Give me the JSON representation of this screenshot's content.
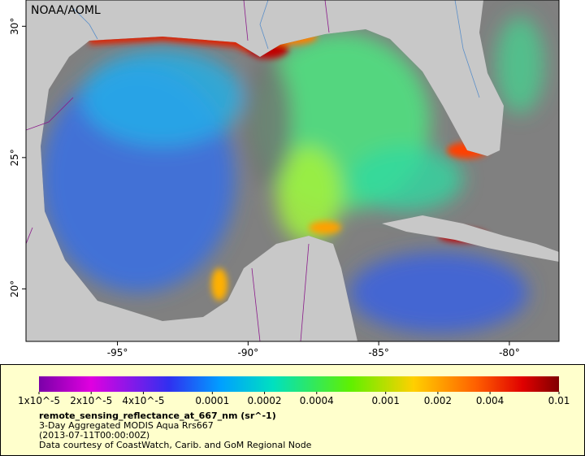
{
  "map": {
    "credit": "NOAA/AOML",
    "lonlim": [
      -98.5,
      -78.1
    ],
    "latlim": [
      18,
      31
    ],
    "lonticks": [
      {
        "value": -95,
        "label": "-95°"
      },
      {
        "value": -90,
        "label": "-90°"
      },
      {
        "value": -85,
        "label": "-85°"
      },
      {
        "value": -80,
        "label": "-80°"
      }
    ],
    "latticks": [
      {
        "value": 30,
        "label": "30°"
      },
      {
        "value": 25,
        "label": "25°"
      },
      {
        "value": 20,
        "label": "20°"
      }
    ]
  },
  "colorbar": {
    "scale": "log",
    "range": [
      1e-05,
      0.01
    ],
    "ticks": [
      {
        "value": 1e-05,
        "label": "1x10^-5"
      },
      {
        "value": 2e-05,
        "label": "2x10^-5"
      },
      {
        "value": 4e-05,
        "label": "4x10^-5"
      },
      0.0001,
      0.0002,
      0.0004,
      0.001,
      0.002,
      0.004,
      0.01
    ]
  },
  "legend": {
    "variable": "remote_sensing_reflectance_at_667_nm (sr^-1)",
    "product": "3-Day Aggregated MODIS Aqua Rrs667",
    "time": "(2013-07-11T00:00:00Z)",
    "credit": "Data courtesy of CoastWatch, Carib. and GoM Regional Node"
  }
}
